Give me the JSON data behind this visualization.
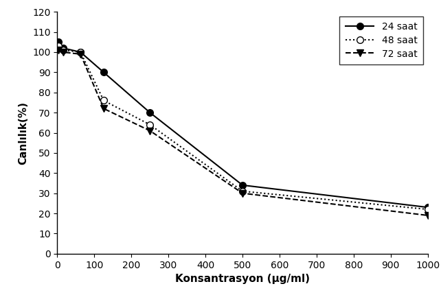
{
  "x_values": [
    1.95,
    15.6,
    62.5,
    125,
    250,
    500,
    1000
  ],
  "series_24h": {
    "label": "24 saat",
    "y": [
      105,
      102,
      100,
      90,
      70,
      34,
      23
    ],
    "linestyle": "-",
    "marker": "o",
    "markerfacecolor": "black",
    "color": "black"
  },
  "series_48h": {
    "label": "48 saat",
    "y": [
      103,
      101,
      100,
      76,
      64,
      31,
      22
    ],
    "linestyle": ":",
    "marker": "o",
    "markerfacecolor": "white",
    "color": "black"
  },
  "series_72h": {
    "label": "72 saat",
    "y": [
      101,
      100,
      99,
      72,
      61,
      30,
      19
    ],
    "linestyle": "--",
    "marker": "v",
    "markerfacecolor": "black",
    "color": "black"
  },
  "xlabel": "Konsantrasyon (µg/ml)",
  "ylabel": "Canlılık(%)",
  "xlim": [
    0,
    1000
  ],
  "ylim": [
    0,
    120
  ],
  "yticks": [
    0,
    10,
    20,
    30,
    40,
    50,
    60,
    70,
    80,
    90,
    100,
    110,
    120
  ],
  "xticks": [
    0,
    100,
    200,
    300,
    400,
    500,
    600,
    700,
    800,
    900,
    1000
  ],
  "background_color": "#ffffff",
  "plot_bg_color": "#ffffff",
  "border_color": "#aaaaaa",
  "markersize": 7,
  "linewidth": 1.5,
  "xlabel_fontsize": 11,
  "ylabel_fontsize": 11,
  "tick_fontsize": 10,
  "legend_fontsize": 10
}
